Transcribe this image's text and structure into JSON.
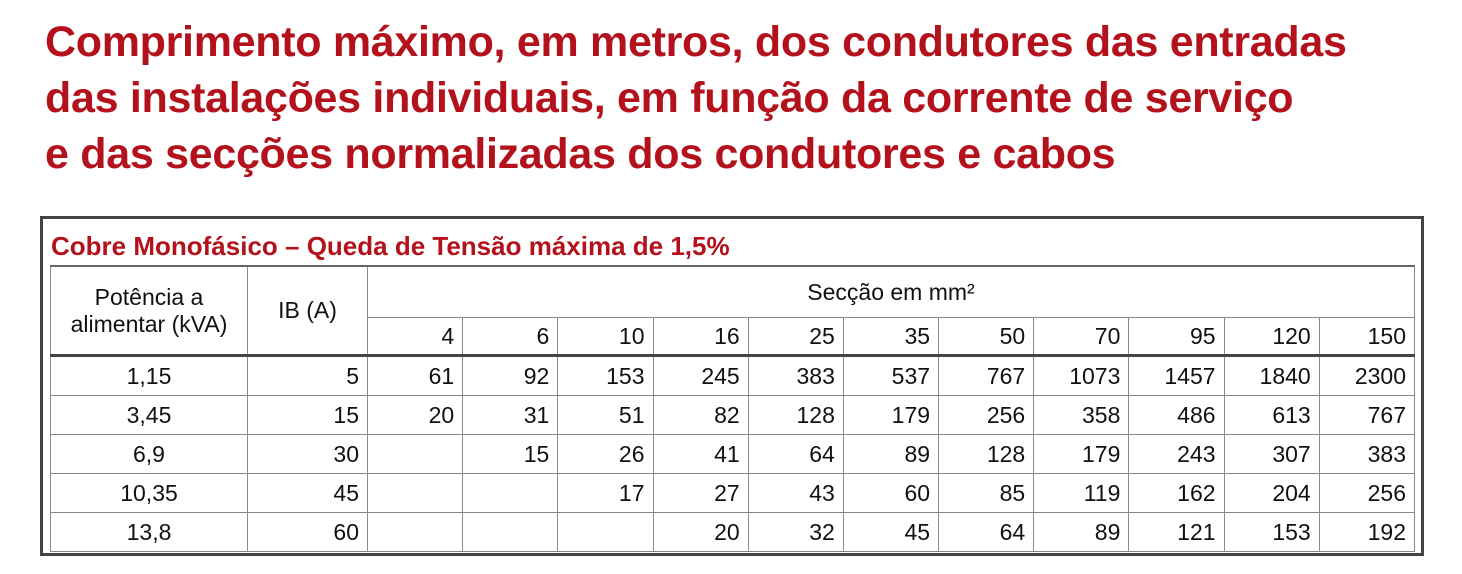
{
  "header": {
    "title_lines": [
      "Comprimento máximo, em metros, dos condutores das entradas",
      "das instalações individuais, em função da corrente de serviço",
      "e das secções normalizadas dos condutores e cabos"
    ]
  },
  "table": {
    "caption": "Cobre Monofásico – Queda de Tensão máxima de 1,5%",
    "header_power": "Potência a alimentar (kVA)",
    "header_current": "IB (A)",
    "header_section": "Secção em mm²",
    "sections": [
      4,
      6,
      10,
      16,
      25,
      35,
      50,
      70,
      95,
      120,
      150
    ],
    "rows": [
      {
        "power": "1,15",
        "current": 5,
        "lengths": [
          61,
          92,
          153,
          245,
          383,
          537,
          767,
          1073,
          1457,
          1840,
          2300
        ]
      },
      {
        "power": "3,45",
        "current": 15,
        "lengths": [
          20,
          31,
          51,
          82,
          128,
          179,
          256,
          358,
          486,
          613,
          767
        ]
      },
      {
        "power": "6,9",
        "current": 30,
        "lengths": [
          null,
          15,
          26,
          41,
          64,
          89,
          128,
          179,
          243,
          307,
          383
        ]
      },
      {
        "power": "10,35",
        "current": 45,
        "lengths": [
          null,
          null,
          17,
          27,
          43,
          60,
          85,
          119,
          162,
          204,
          256
        ]
      },
      {
        "power": "13,8",
        "current": 60,
        "lengths": [
          null,
          null,
          null,
          20,
          32,
          45,
          64,
          89,
          121,
          153,
          192
        ]
      }
    ]
  }
}
